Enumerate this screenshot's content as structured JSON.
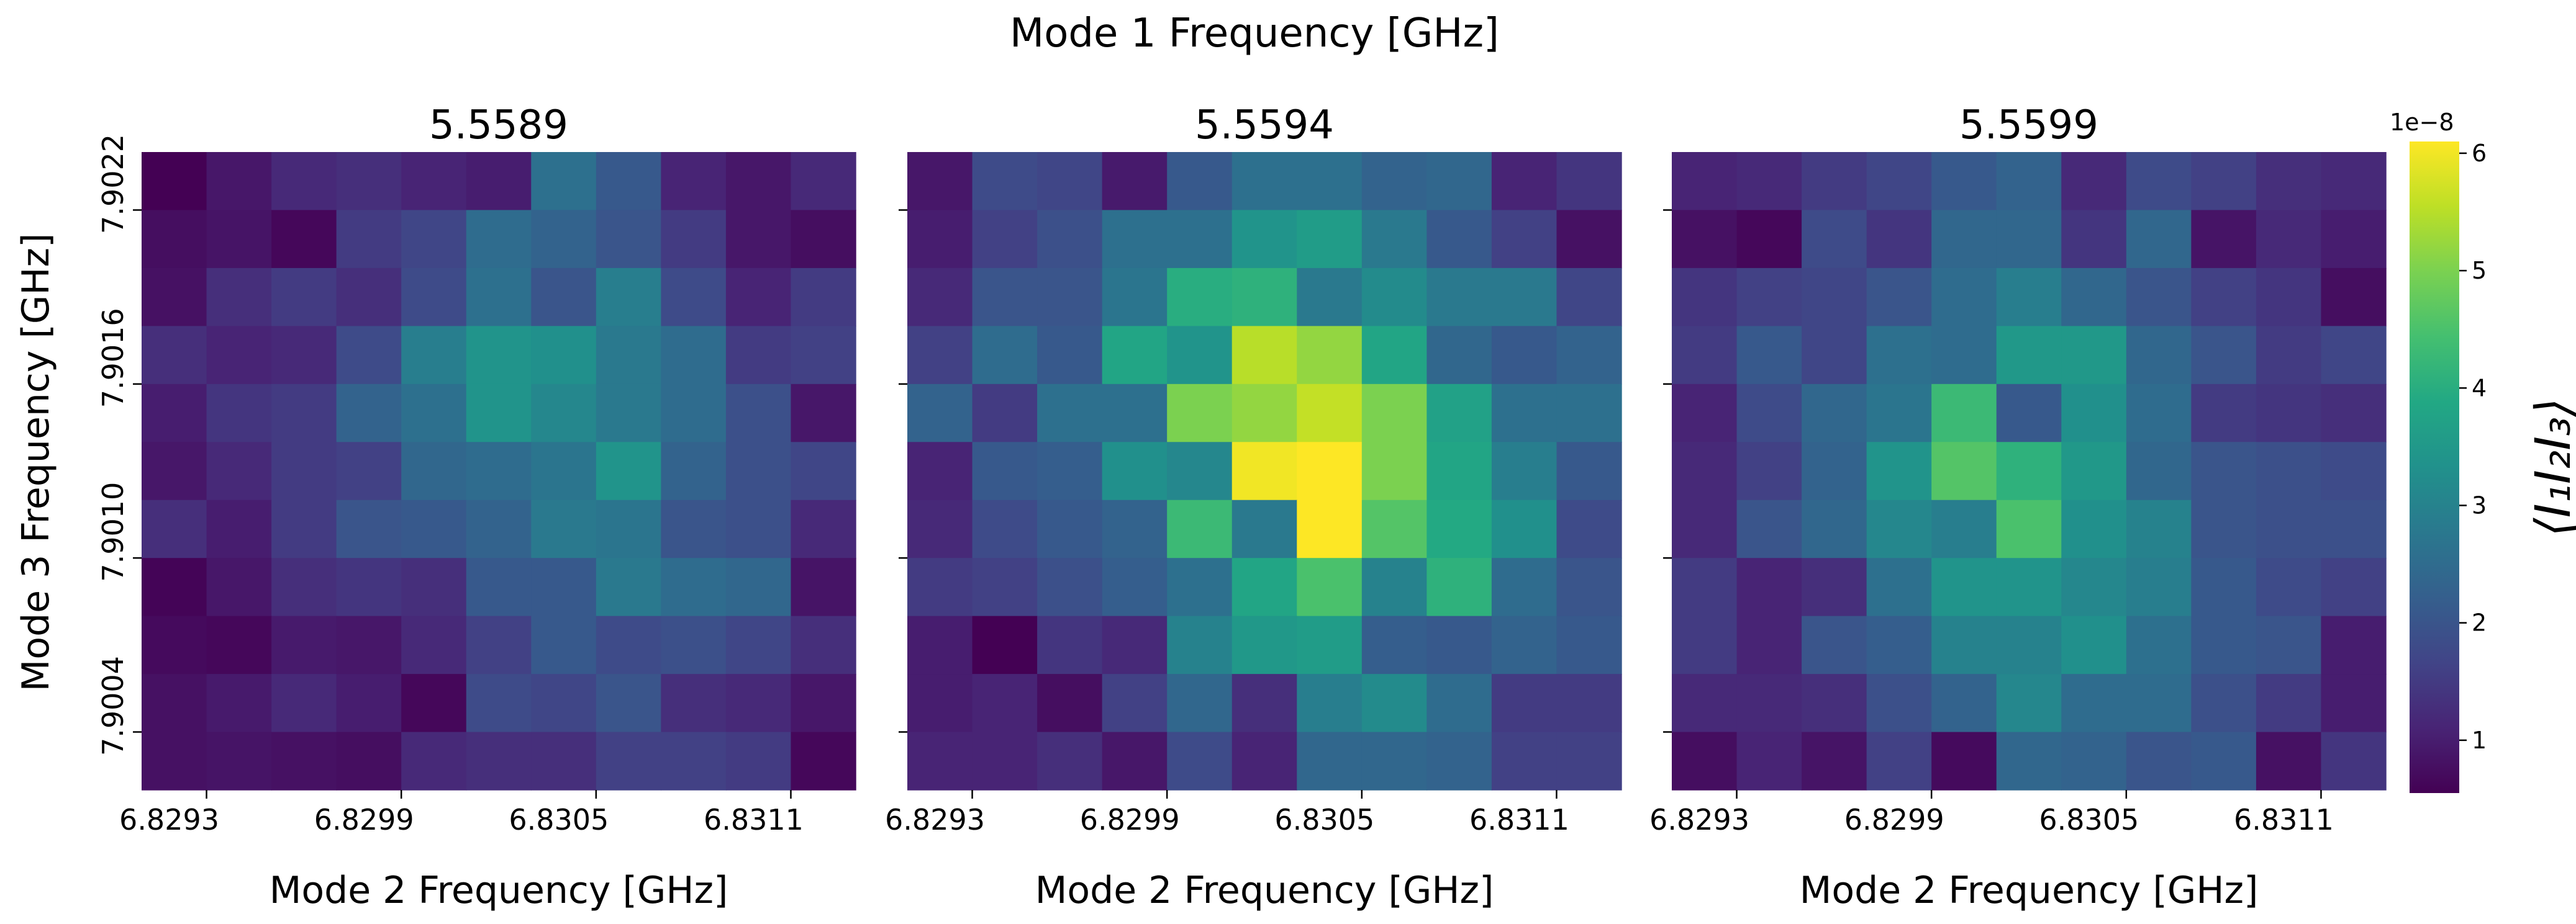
{
  "chart_data": {
    "type": "heatmap",
    "suptitle": "Mode 1 Frequency [GHz]",
    "ylabel": "Mode 3 Frequency [GHz]",
    "xlabel": "Mode 2 Frequency [GHz]",
    "colormap": "viridis",
    "colorbar": {
      "label": "⟨I₁I₂I₃⟩",
      "exponent_label": "1e−8",
      "vmin": 0.55,
      "vmax": 6.1,
      "ticks": [
        1,
        2,
        3,
        4,
        5,
        6
      ],
      "tick_labels": [
        "1",
        "2",
        "3",
        "4",
        "5",
        "6"
      ]
    },
    "x_tick_labels": [
      "6.8293",
      "6.8299",
      "6.8305",
      "6.8311"
    ],
    "y_tick_labels": [
      "7.9022",
      "7.9016",
      "7.9010",
      "7.9004"
    ],
    "x_axis_values": [
      "6.8293",
      "6.8295",
      "6.8297",
      "6.8299",
      "6.8301",
      "6.8303",
      "6.8305",
      "6.8307",
      "6.8309",
      "6.8311",
      "6.8313"
    ],
    "y_axis_values_top_to_bottom": [
      "7.9022",
      "7.9020",
      "7.9018",
      "7.9016",
      "7.9014",
      "7.9012",
      "7.9010",
      "7.9008",
      "7.9006",
      "7.9004",
      "7.9002"
    ],
    "panels": [
      {
        "title": "5.5589",
        "values": [
          [
            0.55,
            0.9,
            1.2,
            1.3,
            1.1,
            1.0,
            2.6,
            2.1,
            1.1,
            0.9,
            1.2
          ],
          [
            0.75,
            0.85,
            0.65,
            1.5,
            1.7,
            2.5,
            2.3,
            2.0,
            1.5,
            0.9,
            0.75
          ],
          [
            0.8,
            1.3,
            1.5,
            1.3,
            1.8,
            2.6,
            2.0,
            2.9,
            1.8,
            1.1,
            1.5
          ],
          [
            1.3,
            1.1,
            1.2,
            1.8,
            2.9,
            3.4,
            3.3,
            2.8,
            2.5,
            1.5,
            1.6
          ],
          [
            1.0,
            1.4,
            1.5,
            2.3,
            2.6,
            3.4,
            3.1,
            2.8,
            2.5,
            1.9,
            0.9
          ],
          [
            0.9,
            1.2,
            1.5,
            1.6,
            2.4,
            2.5,
            2.7,
            3.4,
            2.3,
            1.9,
            1.7
          ],
          [
            1.3,
            1.0,
            1.5,
            2.0,
            2.1,
            2.3,
            2.8,
            2.7,
            2.0,
            1.9,
            1.2
          ],
          [
            0.6,
            0.9,
            1.3,
            1.4,
            1.3,
            2.1,
            2.1,
            2.8,
            2.5,
            2.4,
            0.85
          ],
          [
            0.7,
            0.65,
            0.95,
            0.9,
            1.2,
            1.6,
            2.1,
            1.8,
            1.9,
            1.7,
            1.3
          ],
          [
            0.8,
            0.95,
            1.2,
            1.0,
            0.65,
            1.8,
            1.7,
            2.0,
            1.3,
            1.2,
            0.9
          ],
          [
            0.8,
            0.85,
            0.8,
            0.75,
            1.2,
            1.3,
            1.3,
            1.6,
            1.6,
            1.5,
            0.65
          ]
        ]
      },
      {
        "title": "5.5594",
        "values": [
          [
            0.9,
            1.8,
            1.7,
            0.95,
            2.1,
            2.6,
            2.6,
            2.3,
            2.4,
            1.1,
            1.4
          ],
          [
            1.0,
            1.6,
            1.9,
            2.6,
            2.6,
            3.4,
            3.6,
            2.8,
            2.1,
            1.6,
            0.8
          ],
          [
            1.2,
            2.0,
            2.0,
            2.7,
            4.0,
            4.1,
            2.8,
            3.2,
            2.8,
            2.8,
            1.7
          ],
          [
            1.6,
            2.5,
            2.1,
            3.8,
            3.4,
            5.5,
            5.2,
            3.8,
            2.4,
            2.1,
            2.3
          ],
          [
            2.3,
            1.5,
            2.6,
            2.6,
            5.0,
            5.2,
            5.6,
            5.0,
            3.7,
            2.6,
            2.6
          ],
          [
            1.1,
            2.1,
            2.2,
            3.3,
            3.1,
            6.0,
            6.1,
            5.0,
            3.8,
            2.9,
            2.1
          ],
          [
            1.2,
            1.8,
            2.1,
            2.3,
            4.3,
            2.8,
            6.1,
            4.6,
            3.9,
            3.3,
            1.8
          ],
          [
            1.5,
            1.6,
            1.9,
            2.2,
            2.6,
            3.8,
            4.5,
            3.0,
            4.1,
            2.5,
            2.0
          ],
          [
            1.0,
            0.55,
            1.4,
            1.2,
            3.0,
            3.5,
            3.6,
            2.2,
            2.1,
            2.3,
            2.1
          ],
          [
            1.0,
            1.1,
            0.75,
            1.6,
            2.4,
            1.3,
            2.9,
            3.2,
            2.5,
            1.5,
            1.5
          ],
          [
            1.1,
            1.1,
            1.3,
            0.9,
            1.8,
            1.1,
            2.4,
            2.4,
            2.3,
            1.6,
            1.6
          ]
        ]
      },
      {
        "title": "5.5599",
        "values": [
          [
            1.1,
            1.2,
            1.5,
            1.7,
            2.1,
            2.3,
            1.2,
            1.8,
            1.6,
            1.3,
            1.2
          ],
          [
            0.8,
            0.65,
            1.8,
            1.4,
            2.4,
            2.4,
            1.4,
            2.4,
            0.85,
            1.2,
            1.0
          ],
          [
            1.4,
            1.6,
            1.7,
            2.0,
            2.5,
            2.9,
            2.4,
            2.0,
            1.6,
            1.4,
            0.75
          ],
          [
            1.5,
            2.1,
            1.7,
            2.6,
            2.5,
            3.5,
            3.5,
            2.4,
            2.0,
            1.5,
            1.7
          ],
          [
            1.1,
            1.8,
            2.4,
            2.7,
            4.3,
            2.1,
            3.3,
            2.5,
            1.5,
            1.4,
            1.3
          ],
          [
            1.2,
            1.6,
            2.3,
            3.4,
            4.6,
            4.1,
            3.5,
            2.4,
            2.0,
            1.9,
            1.8
          ],
          [
            1.2,
            2.0,
            2.4,
            3.1,
            2.9,
            4.5,
            3.3,
            3.0,
            2.0,
            1.9,
            1.9
          ],
          [
            1.5,
            1.1,
            1.3,
            2.6,
            3.4,
            3.4,
            3.1,
            2.9,
            2.1,
            1.8,
            1.6
          ],
          [
            1.5,
            1.1,
            2.0,
            2.2,
            3.0,
            3.0,
            3.3,
            2.6,
            2.1,
            2.0,
            1.0
          ],
          [
            1.2,
            1.2,
            1.3,
            1.9,
            2.3,
            3.1,
            2.5,
            2.5,
            1.9,
            1.5,
            1.0
          ],
          [
            0.75,
            1.1,
            0.85,
            1.6,
            0.7,
            2.4,
            2.3,
            2.0,
            2.1,
            0.8,
            1.4
          ]
        ]
      }
    ]
  }
}
